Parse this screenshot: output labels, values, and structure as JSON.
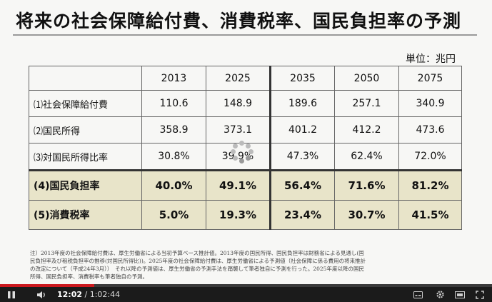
{
  "slide": {
    "title": "将来の社会保障給付費、消費税率、国民負担率の予測",
    "unit": "単位：兆円"
  },
  "table": {
    "years": [
      "2013",
      "2025",
      "2035",
      "2050",
      "2075"
    ],
    "rows": [
      {
        "label": "⑴社会保障給付費",
        "values": [
          "110.6",
          "148.9",
          "189.6",
          "257.1",
          "340.9"
        ]
      },
      {
        "label": "⑵国民所得",
        "values": [
          "358.9",
          "373.1",
          "401.2",
          "412.2",
          "473.6"
        ]
      },
      {
        "label": "⑶対国民所得比率",
        "values": [
          "30.8%",
          "39.9%",
          "47.3%",
          "62.4%",
          "72.0%"
        ]
      },
      {
        "label": "(4)国民負担率",
        "values": [
          "40.0%",
          "49.1%",
          "56.4%",
          "71.6%",
          "81.2%"
        ]
      },
      {
        "label": "(5)消費税率",
        "values": [
          "5.0%",
          "19.3%",
          "23.4%",
          "30.7%",
          "41.5%"
        ]
      }
    ]
  },
  "note": {
    "line1": "注）2013年度の社会保障給付費は、厚生労働省による当初予算ベース推計値。2013年度の国民所得、国民負担率は財務省による見通し(国",
    "line2": "民負担率及び租税負担率の推移(対国民所得比))。2025年度の社会保障給付費は、厚生労働省による予測値（社会保障に係る費用の将来推計",
    "line3": "の改定について（平成24年3月））　それ以降の予測値は、厚生労働省の予測手法を踏襲して筆者独自に予測を行った。2025年度以降の国民",
    "line4": "所得、国民負担率、消費税率も筆者独自の予測。"
  },
  "player": {
    "current_time": "12:02",
    "duration": "/ 1:02:44",
    "progress": 0.192,
    "accent_color": "#cc181e",
    "icons": [
      "pause-icon",
      "next-icon",
      "volume-icon",
      "settings-icon",
      "miniplayer-icon",
      "theater-icon",
      "fullscreen-icon"
    ]
  }
}
